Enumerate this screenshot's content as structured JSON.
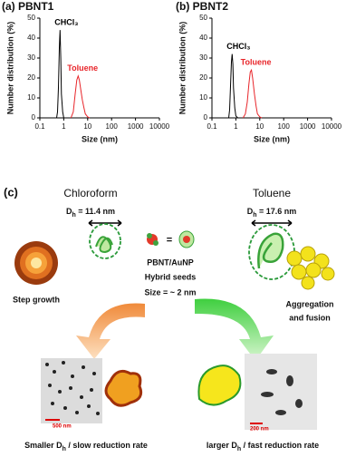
{
  "chart_data": [
    {
      "type": "line",
      "title": "(a) PBNT1",
      "xlabel": "Size (nm)",
      "ylabel": "Number distribution (%)",
      "log_x": true,
      "xlim": [
        0.1,
        10000
      ],
      "xticks": [
        0.1,
        1,
        10,
        100,
        1000,
        10000
      ],
      "ylim": [
        0,
        50
      ],
      "yticks": [
        0,
        10,
        20,
        30,
        40,
        50
      ],
      "series": [
        {
          "name": "CHCl₃",
          "color": "#000000",
          "x": [
            0.4,
            0.5,
            0.55,
            0.6,
            0.65,
            0.7,
            0.75,
            0.8,
            0.9,
            1.0,
            1.2
          ],
          "values": [
            0,
            0,
            3,
            15,
            35,
            44,
            30,
            12,
            3,
            0,
            0
          ]
        },
        {
          "name": "Toluene",
          "color": "#e8252a",
          "x": [
            2,
            2.5,
            3,
            3.5,
            4,
            4.5,
            5,
            6,
            7,
            8,
            10,
            12
          ],
          "values": [
            0,
            3,
            12,
            19,
            21,
            19,
            15,
            9,
            5,
            2,
            0.5,
            0
          ]
        }
      ]
    },
    {
      "type": "line",
      "title": "(b) PBNT2",
      "xlabel": "Size (nm)",
      "ylabel": "Number distribution (%)",
      "log_x": true,
      "xlim": [
        0.1,
        10000
      ],
      "xticks": [
        0.1,
        1,
        10,
        100,
        1000,
        10000
      ],
      "ylim": [
        0,
        50
      ],
      "yticks": [
        0,
        10,
        20,
        30,
        40,
        50
      ],
      "series": [
        {
          "name": "CHCl₃",
          "color": "#000000",
          "x": [
            0.4,
            0.5,
            0.55,
            0.6,
            0.65,
            0.7,
            0.75,
            0.8,
            0.9,
            1.0,
            1.2
          ],
          "values": [
            0,
            0,
            4,
            16,
            28,
            32,
            27,
            15,
            5,
            1,
            0
          ]
        },
        {
          "name": "Toluene",
          "color": "#e8252a",
          "x": [
            2,
            2.5,
            3,
            3.5,
            4,
            4.5,
            5,
            6,
            7,
            8,
            10,
            12
          ],
          "values": [
            0,
            2,
            8,
            17,
            23,
            24,
            20,
            12,
            6,
            2,
            0.5,
            0
          ]
        }
      ]
    }
  ],
  "diagram": {
    "panel_label": "(c)",
    "left": {
      "solvent": "Chloroform",
      "dh": {
        "symbol": "D",
        "subscript": "h",
        "text": " = 11.4 nm"
      },
      "mechanism": "Step growth",
      "scale_bar": "500 nm",
      "result": {
        "prefix": "Smaller D",
        "subscript": "h",
        "text": " / slow reduction rate"
      }
    },
    "right": {
      "solvent": "Toluene",
      "dh": {
        "symbol": "D",
        "subscript": "h",
        "text": " = 17.6 nm"
      },
      "mechanism": [
        "Aggregation",
        "and fusion"
      ],
      "scale_bar": "200 nm",
      "result": {
        "prefix": "larger D",
        "subscript": "h",
        "text": " / fast reduction rate"
      }
    },
    "center": {
      "equals": "=",
      "lines": [
        "PBNT/AuNP",
        "Hybrid seeds",
        "Size = ~ 2 nm"
      ]
    }
  }
}
